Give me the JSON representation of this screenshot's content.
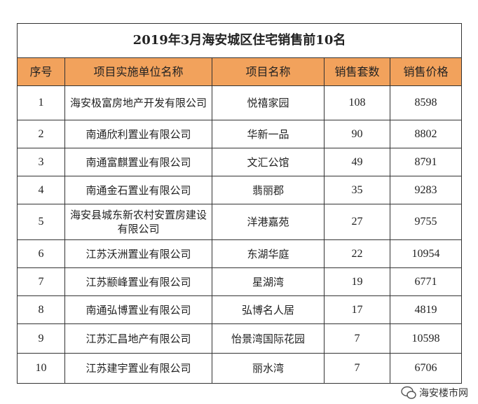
{
  "title": "2019年3月海安城区住宅销售前10名",
  "table": {
    "headers": [
      "序号",
      "项目实施单位名称",
      "项目名称",
      "销售套数",
      "销售价格"
    ],
    "rows": [
      [
        "1",
        "海安极富房地产开发有限公司",
        "悦禧家园",
        "108",
        "8598"
      ],
      [
        "2",
        "南通欣利置业有限公司",
        "华新一品",
        "90",
        "8802"
      ],
      [
        "3",
        "南通富麒置业有限公司",
        "文汇公馆",
        "49",
        "8791"
      ],
      [
        "4",
        "南通金石置业有限公司",
        "翡丽郡",
        "35",
        "9283"
      ],
      [
        "5",
        "海安县城东新农村安置房建设有限公司",
        "洋港嘉苑",
        "27",
        "9755"
      ],
      [
        "6",
        "江苏沃洲置业有限公司",
        "东湖华庭",
        "22",
        "10954"
      ],
      [
        "7",
        "江苏颛峰置业有限公司",
        "星湖湾",
        "19",
        "6771"
      ],
      [
        "8",
        "南通弘博置业有限公司",
        "弘博名人居",
        "17",
        "4819"
      ],
      [
        "9",
        "江苏汇昌地产有限公司",
        "怡景湾国际花园",
        "7",
        "10598"
      ],
      [
        "10",
        "江苏建宇置业有限公司",
        "丽水湾",
        "7",
        "6706"
      ]
    ]
  },
  "watermark": "海安楼市网"
}
